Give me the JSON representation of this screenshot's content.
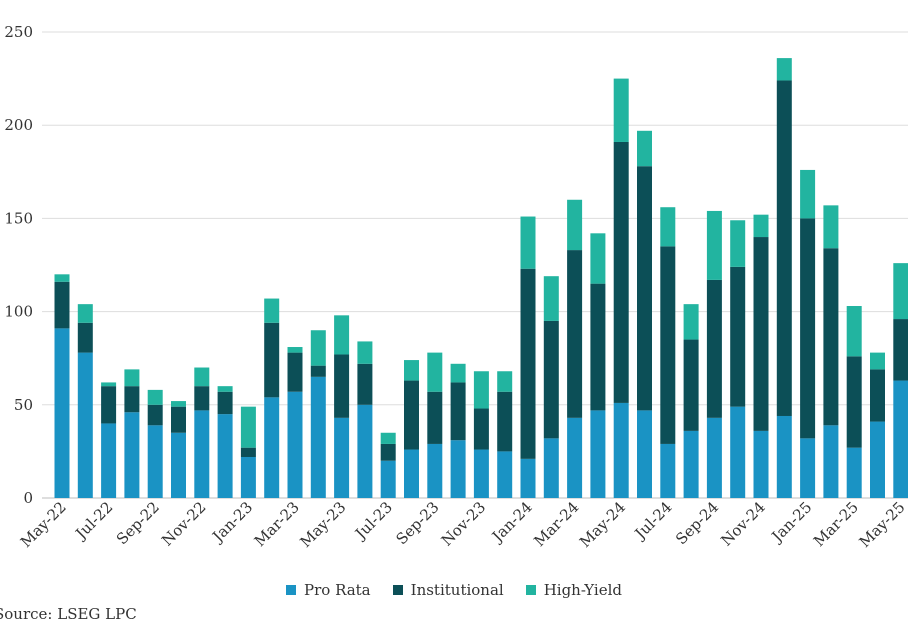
{
  "chart_data": {
    "type": "bar",
    "stacked": true,
    "categories": [
      "May-22",
      "Jun-22",
      "Jul-22",
      "Aug-22",
      "Sep-22",
      "Oct-22",
      "Nov-22",
      "Dec-22",
      "Jan-23",
      "Feb-23",
      "Mar-23",
      "Apr-23",
      "May-23",
      "Jun-23",
      "Jul-23",
      "Aug-23",
      "Sep-23",
      "Oct-23",
      "Nov-23",
      "Dec-23",
      "Jan-24",
      "Feb-24",
      "Mar-24",
      "Apr-24",
      "May-24",
      "Jun-24",
      "Jul-24",
      "Aug-24",
      "Sep-24",
      "Oct-24",
      "Nov-24",
      "Dec-24",
      "Jan-25",
      "Feb-25",
      "Mar-25",
      "Apr-25",
      "May-25"
    ],
    "tick_labels": [
      "May-22",
      "Jul-22",
      "Sep-22",
      "Nov-22",
      "Jan-23",
      "Mar-23",
      "May-23",
      "Jul-23",
      "Sep-23",
      "Nov-23",
      "Jan-24",
      "Mar-24",
      "May-24",
      "Jul-24",
      "Sep-24",
      "Nov-24",
      "Jan-25",
      "Mar-25",
      "May-25"
    ],
    "series": [
      {
        "name": "Pro Rata",
        "color": "#1a93c4",
        "values": [
          91,
          78,
          40,
          46,
          39,
          35,
          47,
          45,
          22,
          54,
          57,
          65,
          43,
          50,
          20,
          26,
          29,
          31,
          26,
          25,
          21,
          32,
          43,
          47,
          51,
          47,
          29,
          36,
          43,
          49,
          36,
          44,
          32,
          39,
          27,
          41,
          63
        ]
      },
      {
        "name": "Institutional",
        "color": "#0c4f57",
        "values": [
          25,
          16,
          20,
          14,
          11,
          14,
          13,
          12,
          5,
          40,
          21,
          6,
          34,
          22,
          9,
          37,
          28,
          31,
          22,
          32,
          102,
          63,
          90,
          68,
          140,
          131,
          106,
          49,
          74,
          75,
          104,
          180,
          118,
          95,
          49,
          28,
          33
        ]
      },
      {
        "name": "High-Yield",
        "color": "#22b4a0",
        "values": [
          4,
          10,
          2,
          9,
          8,
          3,
          10,
          3,
          22,
          13,
          3,
          19,
          21,
          12,
          6,
          11,
          21,
          10,
          20,
          11,
          28,
          24,
          27,
          27,
          34,
          19,
          21,
          19,
          37,
          25,
          12,
          12,
          26,
          23,
          27,
          9,
          30
        ]
      }
    ],
    "ylim": [
      0,
      250
    ],
    "yticks": [
      "0",
      "50",
      "100",
      "150",
      "200",
      "250"
    ],
    "grid": true,
    "legend_position": "bottom",
    "source": "Source: LSEG LPC"
  }
}
